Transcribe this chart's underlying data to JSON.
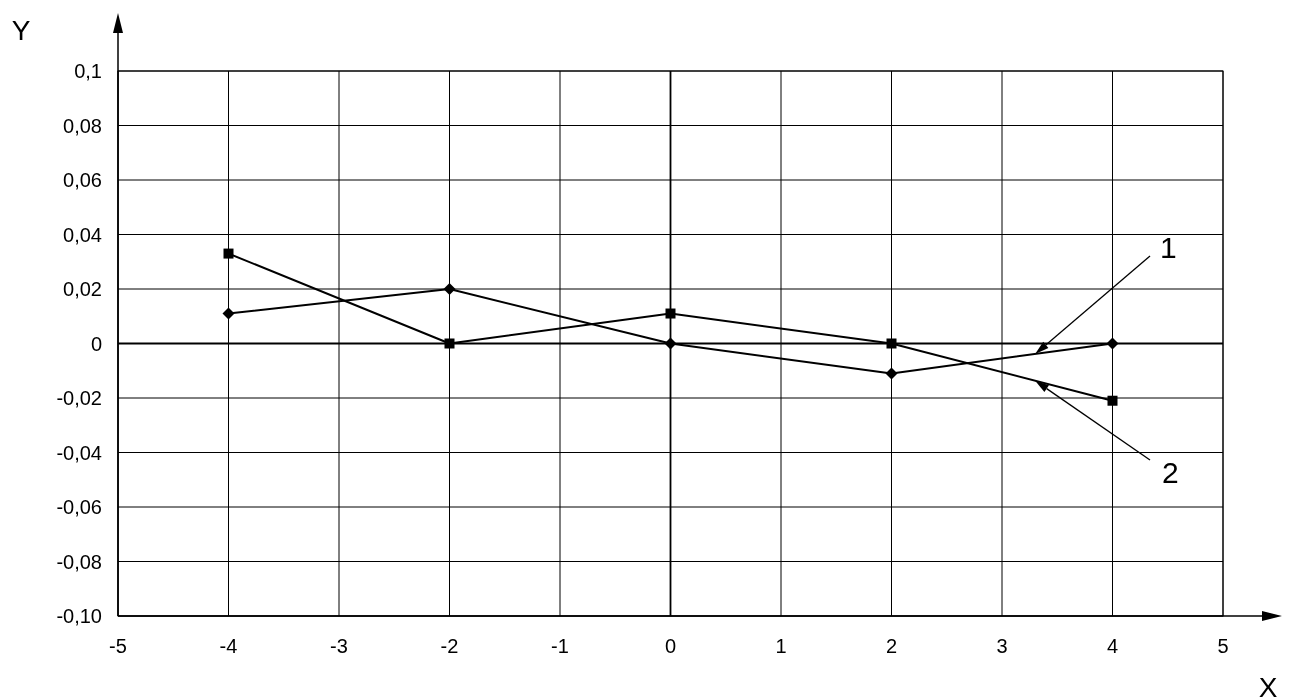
{
  "chart_data": {
    "type": "line",
    "xlabel": "X",
    "ylabel": "Y",
    "x": [
      -4,
      -2,
      0,
      2,
      4
    ],
    "series": [
      {
        "name": "1",
        "color": "#000000",
        "marker": "diamond",
        "values": [
          0.011,
          0.02,
          0,
          -0.011,
          0
        ]
      },
      {
        "name": "2",
        "color": "#000000",
        "marker": "square",
        "values": [
          0.033,
          0,
          0.011,
          0,
          -0.021
        ]
      }
    ],
    "xlim": [
      -5,
      5
    ],
    "xticks": [
      -5,
      -4,
      -3,
      -2,
      -1,
      0,
      1,
      2,
      3,
      4,
      5
    ],
    "ylim": [
      -0.1,
      0.1
    ],
    "yticks": [
      {
        "value": -0.1,
        "label": "-0,10"
      },
      {
        "value": -0.08,
        "label": "-0,08"
      },
      {
        "value": -0.06,
        "label": "-0,06"
      },
      {
        "value": -0.04,
        "label": "-0,04"
      },
      {
        "value": -0.02,
        "label": "-0,02"
      },
      {
        "value": 0,
        "label": "0"
      },
      {
        "value": 0.02,
        "label": "0,02"
      },
      {
        "value": 0.04,
        "label": "0,04"
      },
      {
        "value": 0.06,
        "label": "0,06"
      },
      {
        "value": 0.08,
        "label": "0,08"
      },
      {
        "value": 0.1,
        "label": "0,1"
      }
    ],
    "grid": true,
    "line_style": "solid"
  }
}
